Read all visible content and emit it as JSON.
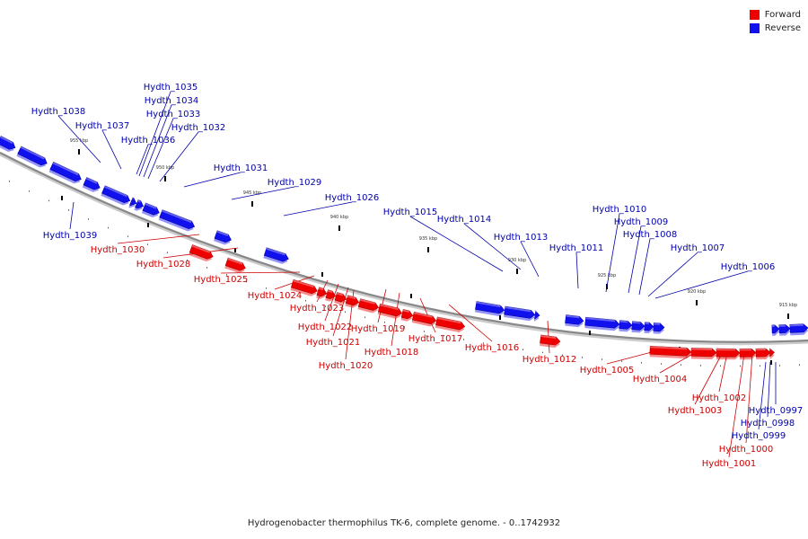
{
  "caption": "Hydrogenobacter thermophilus TK-6, complete genome. - 0..1742932",
  "legend": [
    {
      "label": "Forward",
      "color": "#ee0000"
    },
    {
      "label": "Reverse",
      "color": "#1111ee"
    }
  ],
  "colors": {
    "forward": "#ee0000",
    "reverse": "#1111ee",
    "forward_text": "#cc0000",
    "reverse_text": "#0000aa",
    "backbone": "#888888"
  },
  "ticks": [
    "955 kbp",
    "950 kbp",
    "945 kbp",
    "940 kbp",
    "935 kbp",
    "930 kbp",
    "925 kbp",
    "920 kbp",
    "915 kbp"
  ],
  "genes": [
    {
      "name": "Hydth_1039",
      "strand": "reverse"
    },
    {
      "name": "Hydth_1038",
      "strand": "reverse"
    },
    {
      "name": "Hydth_1037",
      "strand": "reverse"
    },
    {
      "name": "Hydth_1036",
      "strand": "reverse"
    },
    {
      "name": "Hydth_1035",
      "strand": "reverse"
    },
    {
      "name": "Hydth_1034",
      "strand": "reverse"
    },
    {
      "name": "Hydth_1033",
      "strand": "reverse"
    },
    {
      "name": "Hydth_1032",
      "strand": "reverse"
    },
    {
      "name": "Hydth_1031",
      "strand": "reverse"
    },
    {
      "name": "Hydth_1030",
      "strand": "forward"
    },
    {
      "name": "Hydth_1029",
      "strand": "reverse"
    },
    {
      "name": "Hydth_1028",
      "strand": "forward"
    },
    {
      "name": "Hydth_1026",
      "strand": "reverse"
    },
    {
      "name": "Hydth_1025",
      "strand": "forward"
    },
    {
      "name": "Hydth_1024",
      "strand": "forward"
    },
    {
      "name": "Hydth_1023",
      "strand": "forward"
    },
    {
      "name": "Hydth_1022",
      "strand": "forward"
    },
    {
      "name": "Hydth_1021",
      "strand": "forward"
    },
    {
      "name": "Hydth_1020",
      "strand": "forward"
    },
    {
      "name": "Hydth_1019",
      "strand": "forward"
    },
    {
      "name": "Hydth_1018",
      "strand": "forward"
    },
    {
      "name": "Hydth_1017",
      "strand": "forward"
    },
    {
      "name": "Hydth_1016",
      "strand": "forward"
    },
    {
      "name": "Hydth_1015",
      "strand": "reverse"
    },
    {
      "name": "Hydth_1014",
      "strand": "reverse"
    },
    {
      "name": "Hydth_1013",
      "strand": "reverse"
    },
    {
      "name": "Hydth_1012",
      "strand": "forward"
    },
    {
      "name": "Hydth_1011",
      "strand": "reverse"
    },
    {
      "name": "Hydth_1010",
      "strand": "reverse"
    },
    {
      "name": "Hydth_1009",
      "strand": "reverse"
    },
    {
      "name": "Hydth_1008",
      "strand": "reverse"
    },
    {
      "name": "Hydth_1007",
      "strand": "reverse"
    },
    {
      "name": "Hydth_1006",
      "strand": "reverse"
    },
    {
      "name": "Hydth_1005",
      "strand": "forward"
    },
    {
      "name": "Hydth_1004",
      "strand": "forward"
    },
    {
      "name": "Hydth_1003",
      "strand": "forward"
    },
    {
      "name": "Hydth_1002",
      "strand": "forward"
    },
    {
      "name": "Hydth_1001",
      "strand": "forward"
    },
    {
      "name": "Hydth_1000",
      "strand": "forward"
    },
    {
      "name": "Hydth_0999",
      "strand": "reverse"
    },
    {
      "name": "Hydth_0998",
      "strand": "reverse"
    },
    {
      "name": "Hydth_0997",
      "strand": "reverse"
    }
  ]
}
